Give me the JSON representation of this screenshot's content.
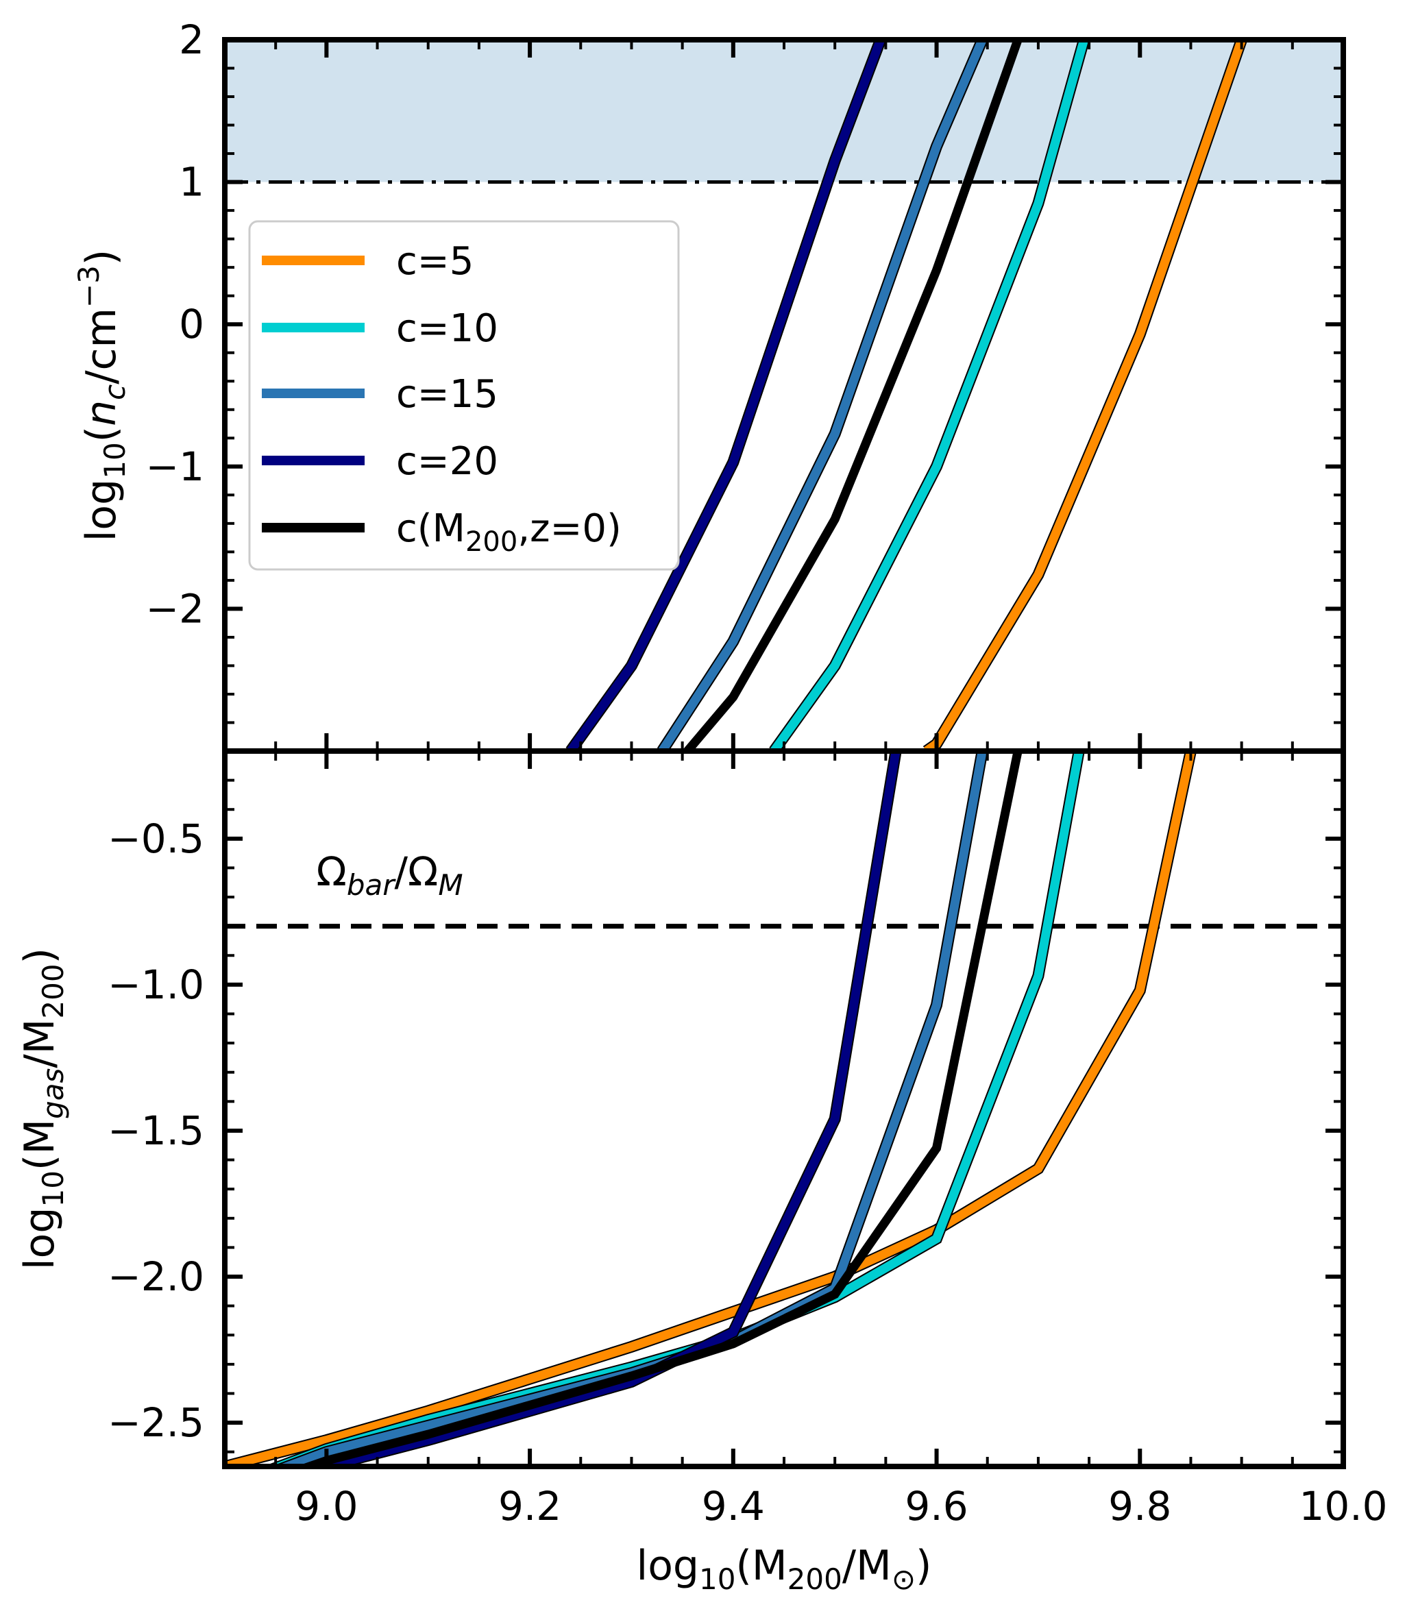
{
  "chart_data": [
    {
      "type": "line",
      "panel": "top",
      "ylabel": {
        "base": "log",
        "sub1": "10",
        "open": "(",
        "var": "n",
        "varsub": "c",
        "mid": "/cm",
        "sup": "−3",
        "close": ")"
      },
      "xlim": [
        8.9,
        10.0
      ],
      "ylim": [
        -3.0,
        2.0
      ],
      "yticks": [
        -2,
        -1,
        0,
        1,
        2
      ],
      "ytick_labels": [
        "−2",
        "−1",
        "0",
        "1",
        "2"
      ],
      "shaded_region": {
        "y_from": 1.0,
        "y_to": 2.0,
        "color": "#d1e2ee"
      },
      "hline": {
        "y": 1.0,
        "style": "dashdot",
        "color": "#000000"
      },
      "legend": {
        "placement": "center-left",
        "entries": [
          {
            "color": "#ff8c00",
            "label": "c=5"
          },
          {
            "color": "#00ced1",
            "label": "c=10"
          },
          {
            "color": "#2a75b3",
            "label": "c=15"
          },
          {
            "color": "#000080",
            "label": "c=20"
          },
          {
            "color": "#000000",
            "label": "c(M",
            "label_sub": "200",
            "label_end": ",z=0)"
          }
        ]
      },
      "series": [
        {
          "name": "c=5",
          "color": "#ff8c00",
          "outlined": true,
          "x": [
            9.59,
            9.6,
            9.7,
            9.8,
            9.9
          ],
          "y": [
            -3.0,
            -2.95,
            -1.76,
            -0.07,
            2.0
          ]
        },
        {
          "name": "c=10",
          "color": "#00ced1",
          "outlined": true,
          "x": [
            9.44,
            9.5,
            9.6,
            9.7,
            9.745
          ],
          "y": [
            -3.0,
            -2.4,
            -1.0,
            0.85,
            2.0
          ]
        },
        {
          "name": "c=15",
          "color": "#2a75b3",
          "outlined": true,
          "x": [
            9.33,
            9.4,
            9.5,
            9.6,
            9.645
          ],
          "y": [
            -3.0,
            -2.23,
            -0.77,
            1.25,
            2.0
          ]
        },
        {
          "name": "c=20",
          "color": "#000080",
          "outlined": true,
          "x": [
            9.24,
            9.3,
            9.4,
            9.5,
            9.545
          ],
          "y": [
            -3.0,
            -2.4,
            -0.97,
            1.15,
            2.0
          ]
        },
        {
          "name": "c(M200,z=0)",
          "color": "#000000",
          "outlined": false,
          "x": [
            9.355,
            9.4,
            9.5,
            9.6,
            9.68
          ],
          "y": [
            -3.0,
            -2.62,
            -1.37,
            0.38,
            2.0
          ]
        }
      ]
    },
    {
      "type": "line",
      "panel": "bottom",
      "xlabel": {
        "base": "log",
        "sub1": "10",
        "open": "(M",
        "sub2": "200",
        "mid": "/M",
        "sub3": "⊙",
        "close": ")"
      },
      "ylabel": {
        "base": "log",
        "sub1": "10",
        "open": "(M",
        "sub2": "gas",
        "mid": "/M",
        "sub3": "200",
        "close": ")"
      },
      "xlim": [
        8.9,
        10.0
      ],
      "ylim": [
        -2.65,
        -0.2
      ],
      "xticks": [
        9.0,
        9.2,
        9.4,
        9.6,
        9.8,
        10.0
      ],
      "xtick_labels": [
        "9.0",
        "9.2",
        "9.4",
        "9.6",
        "9.8",
        "10.0"
      ],
      "yticks": [
        -2.5,
        -2.0,
        -1.5,
        -1.0,
        -0.5
      ],
      "ytick_labels": [
        "−2.5",
        "−2.0",
        "−1.5",
        "−1.0",
        "−0.5"
      ],
      "hline": {
        "y": -0.8,
        "style": "dashed",
        "color": "#000000"
      },
      "annotation": {
        "omega": "Ω",
        "sub1": "bar",
        "slash": "/Ω",
        "sub2": "M",
        "x": 8.99,
        "y": -0.66
      },
      "series": [
        {
          "name": "c=5",
          "color": "#ff8c00",
          "outlined": true,
          "x": [
            8.9,
            9.0,
            9.1,
            9.2,
            9.3,
            9.4,
            9.5,
            9.6,
            9.7,
            9.8,
            9.85
          ],
          "y": [
            -2.65,
            -2.56,
            -2.46,
            -2.35,
            -2.24,
            -2.12,
            -2.0,
            -1.84,
            -1.63,
            -1.02,
            -0.2
          ]
        },
        {
          "name": "c=10",
          "color": "#00ced1",
          "outlined": true,
          "x": [
            8.9,
            9.0,
            9.1,
            9.2,
            9.3,
            9.4,
            9.5,
            9.6,
            9.7,
            9.74
          ],
          "y": [
            -2.72,
            -2.59,
            -2.49,
            -2.4,
            -2.31,
            -2.21,
            -2.07,
            -1.87,
            -0.97,
            -0.2
          ]
        },
        {
          "name": "c=15",
          "color": "#2a75b3",
          "outlined": true,
          "x": [
            8.9,
            9.0,
            9.1,
            9.2,
            9.3,
            9.4,
            9.5,
            9.6,
            9.645
          ],
          "y": [
            -2.73,
            -2.6,
            -2.51,
            -2.42,
            -2.33,
            -2.22,
            -2.04,
            -1.07,
            -0.2
          ]
        },
        {
          "name": "c=20",
          "color": "#000080",
          "outlined": true,
          "x": [
            8.9,
            9.0,
            9.1,
            9.2,
            9.3,
            9.4,
            9.5,
            9.56
          ],
          "y": [
            -2.76,
            -2.65,
            -2.56,
            -2.46,
            -2.36,
            -2.19,
            -1.46,
            -0.2
          ]
        },
        {
          "name": "c(M200,z=0)",
          "color": "#000000",
          "outlined": false,
          "x": [
            8.9,
            9.0,
            9.1,
            9.2,
            9.3,
            9.4,
            9.5,
            9.6,
            9.68
          ],
          "y": [
            -2.75,
            -2.63,
            -2.54,
            -2.44,
            -2.34,
            -2.23,
            -2.06,
            -1.56,
            -0.2
          ]
        }
      ]
    }
  ]
}
